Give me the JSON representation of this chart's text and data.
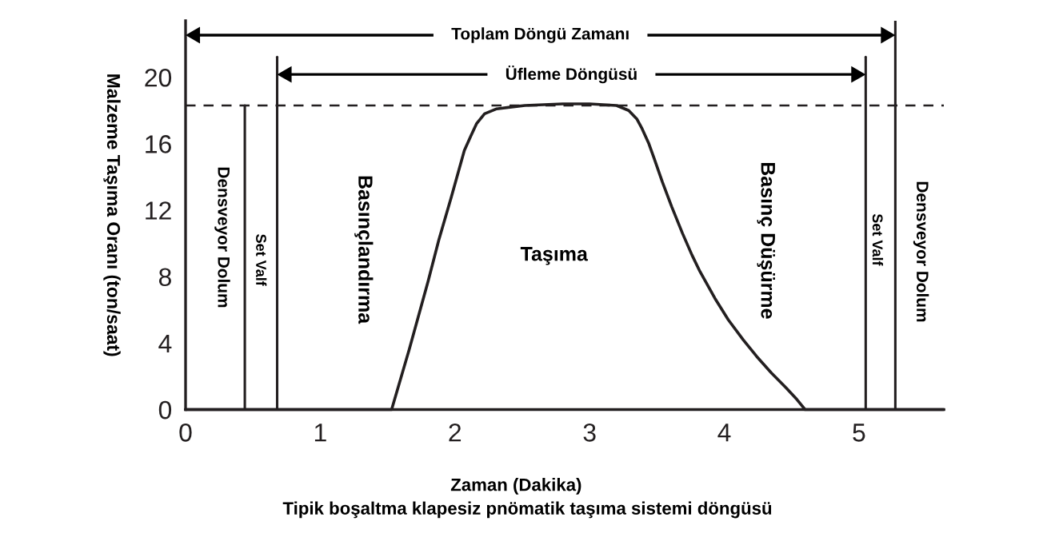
{
  "chart_data": {
    "type": "line",
    "xlabel": "Zaman (Dakika)",
    "ylabel": "Malzeme Taşıma Oranı (ton/saat)",
    "x": [
      0,
      1.53,
      1.66,
      1.8,
      1.88,
      1.97,
      2.07,
      2.12,
      2.16,
      2.22,
      2.31,
      2.41,
      2.52,
      2.8,
      3.0,
      3.1,
      3.2,
      3.29,
      3.35,
      3.39,
      3.44,
      3.48,
      3.54,
      3.61,
      3.69,
      3.76,
      3.82,
      3.93,
      4.03,
      4.14,
      4.24,
      4.35,
      4.46,
      4.54,
      4.6,
      5.63
    ],
    "series": [
      {
        "color": "#231f20",
        "values": [
          0,
          0,
          3.6,
          7.7,
          10.2,
          12.7,
          15.6,
          16.5,
          17.2,
          17.8,
          18.1,
          18.2,
          18.3,
          18.4,
          18.4,
          18.35,
          18.3,
          18.0,
          17.5,
          16.9,
          16.0,
          15.1,
          13.7,
          12.2,
          10.6,
          9.3,
          8.3,
          6.7,
          5.4,
          4.2,
          3.2,
          2.2,
          1.3,
          0.6,
          0,
          0
        ]
      }
    ],
    "xlim": [
      0,
      5.63
    ],
    "ylim": [
      0,
      23.4
    ],
    "xticks": [
      0,
      1,
      2,
      3,
      4,
      5
    ],
    "yticks": [
      0,
      4,
      8,
      12,
      16,
      20
    ],
    "line_style": "solid",
    "ref_lines": [
      {
        "axis": "y",
        "value": 18.3,
        "color": "#231f20",
        "line_style": "dashed"
      },
      {
        "axis": "x",
        "value": 0.44,
        "color": "#231f20",
        "line_style": "solid"
      },
      {
        "axis": "x",
        "value": 0.68,
        "color": "#231f20",
        "line_style": "solid"
      },
      {
        "axis": "x",
        "value": 5.05,
        "color": "#231f20",
        "line_style": "solid"
      },
      {
        "axis": "x",
        "value": 5.27,
        "color": "#231f20",
        "line_style": "solid"
      }
    ],
    "annotations": [
      "Toplam Döngü Zamanı",
      "Üfleme Döngüsü",
      "Densveyor Dolum",
      "Set Valf",
      "Basınçlandırma",
      "Taşıma",
      "Basınç Düşürme",
      "Set Valf",
      "Densveyor Dolum",
      "Tipik boşaltma klapesiz pnömatik taşıma sistemi döngüsü"
    ]
  }
}
